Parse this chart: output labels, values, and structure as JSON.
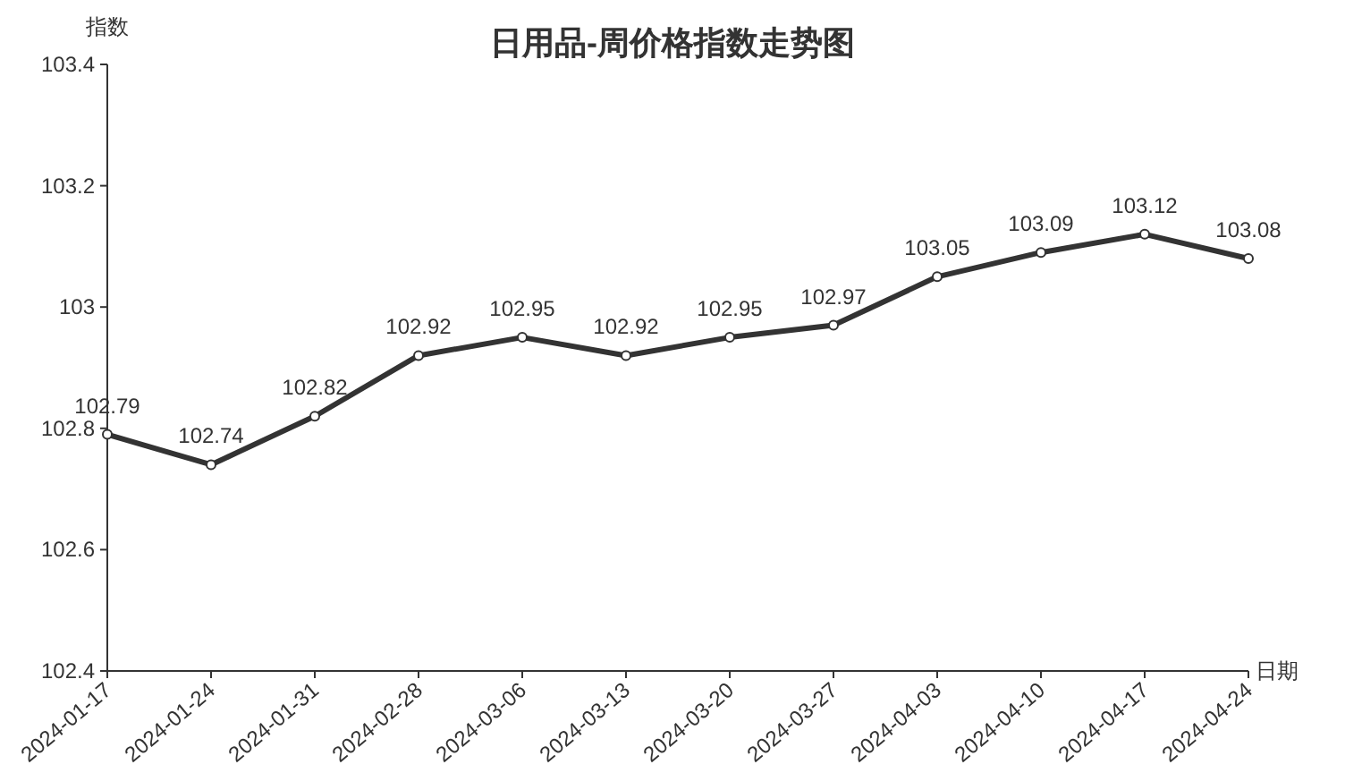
{
  "chart_data": {
    "type": "line",
    "title": "日用品-周价格指数走势图",
    "xlabel": "日期",
    "ylabel": "指数",
    "categories": [
      "2024-01-17",
      "2024-01-24",
      "2024-01-31",
      "2024-02-28",
      "2024-03-06",
      "2024-03-13",
      "2024-03-20",
      "2024-03-27",
      "2024-04-03",
      "2024-04-10",
      "2024-04-17",
      "2024-04-24"
    ],
    "series": [
      {
        "color": "#333333",
        "values": [
          102.79,
          102.74,
          102.82,
          102.92,
          102.95,
          102.92,
          102.95,
          102.97,
          103.05,
          103.09,
          103.12,
          103.08
        ]
      }
    ],
    "ylim": [
      102.4,
      103.4
    ],
    "yticks": [
      102.4,
      102.6,
      102.8,
      103,
      103.2,
      103.4
    ],
    "data_labels": true,
    "marker": "circle",
    "line_style": "solid",
    "grid": false
  }
}
